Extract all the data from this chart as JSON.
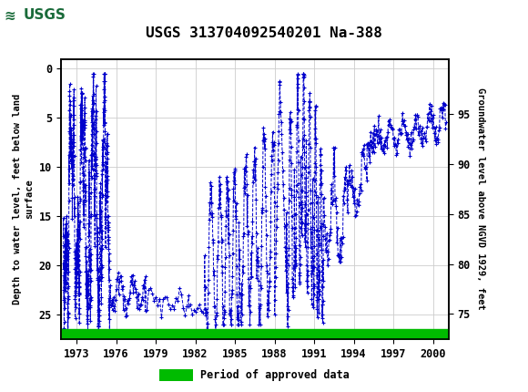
{
  "title": "USGS 313704092540201 Na-388",
  "legend_label": "Period of approved data",
  "ylabel_left": "Depth to water level, feet below land\nsurface",
  "ylabel_right": "Groundwater level above NGVD 1929, feet",
  "xlim": [
    1971.8,
    2001.2
  ],
  "ylim_left": [
    27.5,
    -1.0
  ],
  "ylim_right": [
    72.5,
    100.5
  ],
  "xticks": [
    1973,
    1976,
    1979,
    1982,
    1985,
    1988,
    1991,
    1994,
    1997,
    2000
  ],
  "yticks_left": [
    0,
    5,
    10,
    15,
    20,
    25
  ],
  "yticks_right": [
    75,
    80,
    85,
    90,
    95
  ],
  "plot_color": "#0000cc",
  "approved_bar_color": "#00bb00",
  "header_bg_color": "#1a6b3a",
  "grid_color": "#cccccc",
  "background_color": "#ffffff",
  "marker": "+",
  "linestyle": "--",
  "linewidth": 0.7,
  "markersize": 3.5,
  "fig_width": 5.8,
  "fig_height": 4.3,
  "dpi": 100
}
